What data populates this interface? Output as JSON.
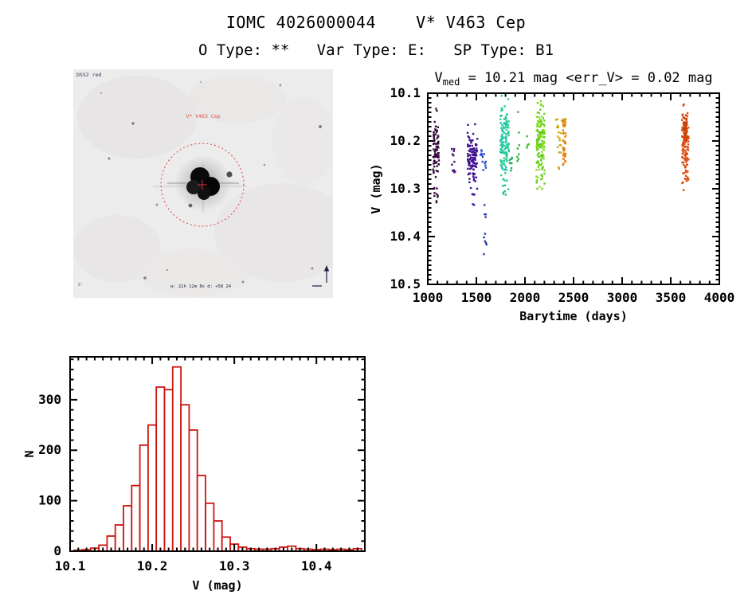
{
  "page": {
    "title": "IOMC 4026000044    V* V463 Cep",
    "subtitle": "O Type: **   Var Type: E:   SP Type: B1"
  },
  "finding_chart": {
    "survey_label": "DSS2 red",
    "target_label": "V* V463 Cep",
    "coords_label": "a: 22h 12m 8s   d: +58 24",
    "scale_label": "5'",
    "annotation_color": "#d94040",
    "background_color": "#edecec"
  },
  "chart_data": [
    {
      "type": "scatter",
      "name": "lightcurve",
      "title_parts": {
        "base": "V",
        "sub": "med",
        "rest": " = 10.21 mag <err_V> = 0.02 mag"
      },
      "xlabel": "Barytime (days)",
      "ylabel": "V (mag)",
      "xlim": [
        1000,
        4000
      ],
      "ylim_top": 10.1,
      "ylim_bottom": 10.5,
      "xticks": [
        1000,
        1500,
        2000,
        2500,
        3000,
        3500,
        4000
      ],
      "yticks": [
        10.1,
        10.2,
        10.3,
        10.4,
        10.5
      ],
      "grid": false,
      "legend": "none (color encodes epoch)",
      "clusters": [
        {
          "days": 1085,
          "day_spread": 60,
          "v_min": 10.15,
          "v_max": 10.285,
          "n": 65,
          "colors": [
            "#38093f",
            "#2e0636"
          ],
          "dist": "gauss"
        },
        {
          "days": 1085,
          "day_spread": 40,
          "v_min": 10.29,
          "v_max": 10.34,
          "n": 9,
          "colors": [
            "#38093f"
          ],
          "dist": "uniform"
        },
        {
          "days": 1090,
          "day_spread": 10,
          "v_min": 10.13,
          "v_max": 10.14,
          "n": 2,
          "colors": [
            "#38093f"
          ],
          "dist": "uniform"
        },
        {
          "days": 1265,
          "day_spread": 40,
          "v_min": 10.215,
          "v_max": 10.27,
          "n": 11,
          "colors": [
            "#480d70"
          ],
          "dist": "uniform"
        },
        {
          "days": 1460,
          "day_spread": 100,
          "v_min": 10.165,
          "v_max": 10.3,
          "n": 110,
          "colors": [
            "#45109a",
            "#3a0d85"
          ],
          "dist": "gauss"
        },
        {
          "days": 1465,
          "day_spread": 50,
          "v_min": 10.3,
          "v_max": 10.345,
          "n": 6,
          "colors": [
            "#45109a"
          ],
          "dist": "uniform"
        },
        {
          "days": 1570,
          "day_spread": 60,
          "v_min": 10.215,
          "v_max": 10.265,
          "n": 13,
          "colors": [
            "#2a47d0"
          ],
          "dist": "uniform"
        },
        {
          "days": 1590,
          "day_spread": 30,
          "v_min": 10.33,
          "v_max": 10.465,
          "n": 10,
          "colors": [
            "#1e3ba9"
          ],
          "dist": "uniform"
        },
        {
          "days": 1790,
          "day_spread": 90,
          "v_min": 10.105,
          "v_max": 10.29,
          "n": 120,
          "colors": [
            "#18c6ac",
            "#2bd189",
            "#25c997"
          ],
          "dist": "gauss"
        },
        {
          "days": 1800,
          "day_spread": 60,
          "v_min": 10.28,
          "v_max": 10.315,
          "n": 8,
          "colors": [
            "#27c18f"
          ],
          "dist": "uniform"
        },
        {
          "days": 1852,
          "day_spread": 35,
          "v_min": 10.225,
          "v_max": 10.265,
          "n": 9,
          "colors": [
            "#1fae62"
          ],
          "dist": "uniform"
        },
        {
          "days": 1930,
          "day_spread": 40,
          "v_min": 10.125,
          "v_max": 10.25,
          "n": 8,
          "colors": [
            "#35b43a"
          ],
          "dist": "uniform"
        },
        {
          "days": 2030,
          "day_spread": 20,
          "v_min": 10.185,
          "v_max": 10.215,
          "n": 4,
          "colors": [
            "#3dbb2b"
          ],
          "dist": "uniform"
        },
        {
          "days": 2160,
          "day_spread": 85,
          "v_min": 10.115,
          "v_max": 10.3,
          "n": 140,
          "colors": [
            "#70d31b",
            "#5cc91d",
            "#86dd18"
          ],
          "dist": "gauss"
        },
        {
          "days": 2348,
          "day_spread": 60,
          "v_min": 10.13,
          "v_max": 10.235,
          "n": 16,
          "colors": [
            "#b5b819",
            "#cfa313"
          ],
          "dist": "uniform"
        },
        {
          "days": 2355,
          "day_spread": 20,
          "v_min": 10.25,
          "v_max": 10.26,
          "n": 2,
          "colors": [
            "#cfa313"
          ],
          "dist": "uniform"
        },
        {
          "days": 2405,
          "day_spread": 28,
          "v_min": 10.15,
          "v_max": 10.25,
          "n": 55,
          "colors": [
            "#e88d10",
            "#e07f0e"
          ],
          "dist": "uniform"
        },
        {
          "days": 3650,
          "day_spread": 70,
          "v_min": 10.11,
          "v_max": 10.305,
          "n": 125,
          "colors": [
            "#e25110",
            "#d9480c"
          ],
          "dist": "gauss"
        },
        {
          "days": 3648,
          "day_spread": 40,
          "v_min": 10.14,
          "v_max": 10.205,
          "n": 30,
          "colors": [
            "#c83d08"
          ],
          "dist": "gauss"
        }
      ]
    },
    {
      "type": "bar",
      "name": "magnitude-histogram",
      "xlabel": "V (mag)",
      "ylabel": "N",
      "xlim": [
        10.1,
        10.459
      ],
      "ylim": [
        0,
        385
      ],
      "xticks": [
        10.1,
        10.2,
        10.3,
        10.4
      ],
      "yticks": [
        0,
        100,
        200,
        300
      ],
      "grid": false,
      "bin_start": 10.105,
      "bin_width": 0.01,
      "values": [
        2,
        3,
        6,
        12,
        30,
        52,
        90,
        130,
        210,
        250,
        325,
        320,
        365,
        290,
        240,
        150,
        95,
        60,
        28,
        14,
        8,
        5,
        4,
        4,
        5,
        8,
        10,
        5,
        4,
        3,
        4,
        3,
        4,
        3,
        5
      ],
      "bar_color": "#cc1510"
    }
  ]
}
